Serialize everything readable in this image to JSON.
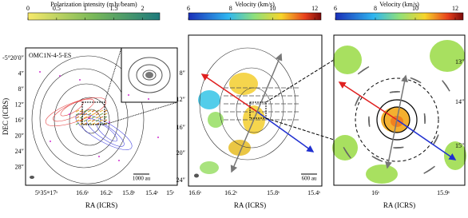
{
  "panels": [
    {
      "colorbar": {
        "label": "Polarization intensity (mJy/beam)",
        "range": [
          0,
          2.3
        ],
        "ticks": [
          0,
          0.5,
          1,
          1.5,
          2
        ]
      },
      "source_label": "OMC1N-4-5-ES",
      "y_ticks": [
        "-5°20′0″",
        "4″",
        "8″",
        "12″",
        "16″",
        "20″",
        "24″",
        "28″"
      ],
      "x_ticks": [
        "5ʰ35ᵐ17ˢ",
        "16.6ˢ",
        "16.2ˢ",
        "15.8ˢ",
        "15.4ˢ",
        "15ˢ"
      ],
      "x_label": "RA (ICRS)",
      "y_label": "DEC (ICRS)",
      "scale_bar": "1000 au"
    },
    {
      "colorbar": {
        "label": "Velocity (km/s)",
        "range": [
          6,
          12.3
        ],
        "ticks": [
          6,
          8,
          10,
          12
        ]
      },
      "y_ticks": [
        "8″",
        "12″",
        "16″",
        "20″",
        "24″"
      ],
      "x_ticks": [
        "16.6ˢ",
        "16.2ˢ",
        "15.8ˢ",
        "15.4ˢ"
      ],
      "x_label": "RA (ICRS)",
      "scale_bar": "600 au"
    },
    {
      "colorbar": {
        "label": "Velocity (km/s)",
        "range": [
          6,
          12.4
        ],
        "ticks": [
          6,
          8,
          10,
          12
        ]
      },
      "y_ticks": [
        "13″",
        "14″",
        "15″"
      ],
      "x_ticks": [
        "16ˢ",
        "15.9ˢ"
      ],
      "x_label": "RA (ICRS)"
    }
  ]
}
